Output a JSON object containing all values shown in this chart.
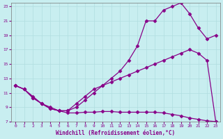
{
  "xlabel": "Windchill (Refroidissement éolien,°C)",
  "bg_color": "#c8eef0",
  "grid_color": "#b0dde0",
  "line_color": "#880088",
  "xlim": [
    -0.5,
    23.5
  ],
  "ylim": [
    7,
    23.5
  ],
  "xticks": [
    0,
    1,
    2,
    3,
    4,
    5,
    6,
    7,
    8,
    9,
    10,
    11,
    12,
    13,
    14,
    15,
    16,
    17,
    18,
    19,
    20,
    21,
    22,
    23
  ],
  "yticks": [
    7,
    9,
    11,
    13,
    15,
    17,
    19,
    21,
    23
  ],
  "line1_x": [
    0,
    1,
    2,
    3,
    4,
    5,
    6,
    7,
    8,
    9,
    10,
    11,
    12,
    13,
    14,
    15,
    16,
    17,
    18,
    19,
    20,
    21,
    22,
    23
  ],
  "line1_y": [
    12.0,
    11.5,
    10.5,
    9.5,
    9.0,
    8.5,
    8.5,
    9.0,
    10.0,
    11.0,
    12.0,
    13.0,
    14.0,
    15.5,
    17.5,
    21.0,
    21.0,
    22.5,
    23.0,
    23.5,
    22.0,
    20.0,
    18.5,
    19.0
  ],
  "line2_x": [
    0,
    1,
    2,
    3,
    4,
    5,
    6,
    7,
    8,
    9,
    10,
    11,
    12,
    13,
    14,
    15,
    16,
    17,
    18,
    19,
    20,
    21,
    22,
    23
  ],
  "line2_y": [
    12.0,
    11.5,
    10.3,
    9.5,
    8.8,
    8.5,
    8.2,
    8.2,
    8.3,
    8.3,
    8.4,
    8.4,
    8.3,
    8.3,
    8.3,
    8.3,
    8.3,
    8.2,
    8.0,
    7.8,
    7.5,
    7.3,
    7.1,
    7.0
  ],
  "line3_x": [
    0,
    1,
    2,
    3,
    4,
    5,
    6,
    7,
    8,
    9,
    10,
    11,
    12,
    13,
    14,
    15,
    16,
    17,
    18,
    19,
    20,
    21,
    22,
    23
  ],
  "line3_y": [
    12.0,
    11.5,
    10.3,
    9.5,
    8.8,
    8.5,
    8.5,
    9.5,
    10.5,
    11.5,
    12.0,
    12.5,
    13.0,
    13.5,
    14.0,
    14.5,
    15.0,
    15.5,
    16.0,
    16.5,
    17.0,
    16.5,
    15.5,
    7.0
  ]
}
